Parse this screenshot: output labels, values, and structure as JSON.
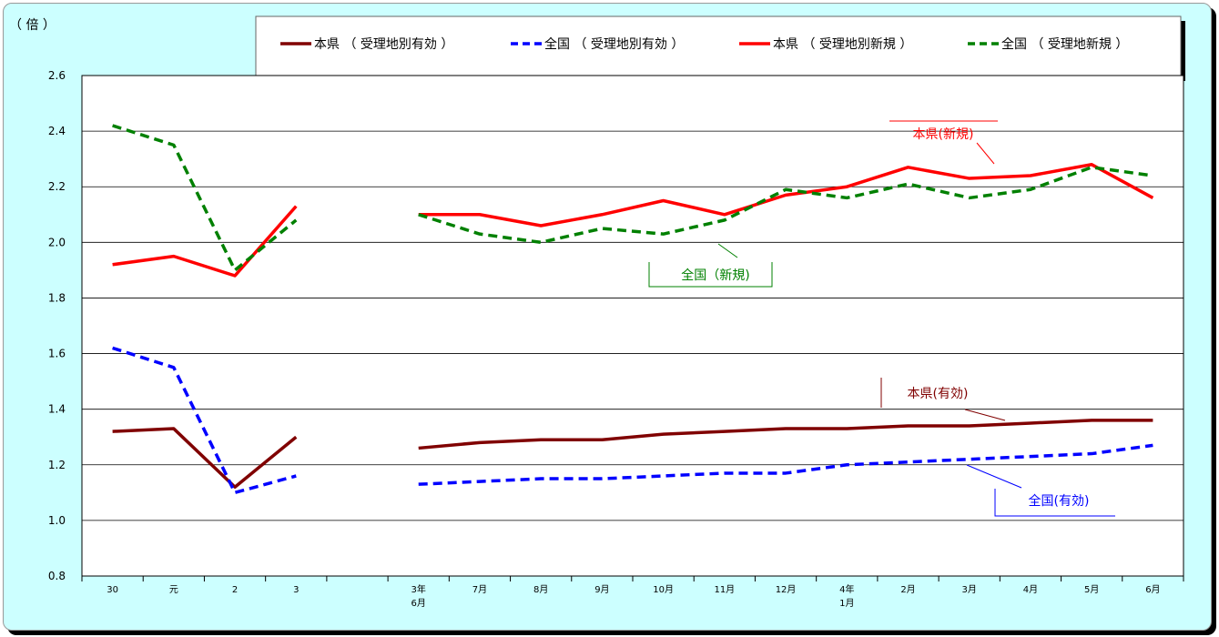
{
  "chart_data": {
    "type": "line",
    "y_unit_label": "（ 倍 ）",
    "ylim": [
      0.8,
      2.6
    ],
    "y_ticks": [
      "0.8",
      "1.0",
      "1.2",
      "1.4",
      "1.6",
      "1.8",
      "2.0",
      "2.2",
      "2.4",
      "2.6"
    ],
    "grid": true,
    "legend_position": "top",
    "categories": [
      [
        "30"
      ],
      [
        "元"
      ],
      [
        "2"
      ],
      [
        "3"
      ],
      [
        ""
      ],
      [
        "3年",
        "6月"
      ],
      [
        "7月"
      ],
      [
        "8月"
      ],
      [
        "9月"
      ],
      [
        "10月"
      ],
      [
        "11月"
      ],
      [
        "12月"
      ],
      [
        "4年",
        "1月"
      ],
      [
        "2月"
      ],
      [
        "3月"
      ],
      [
        "4月"
      ],
      [
        "5月"
      ],
      [
        "6月"
      ]
    ],
    "series": [
      {
        "name": "本県 （ 受理地別有効 ）",
        "color": "#800000",
        "dash": "solid",
        "values": [
          1.32,
          1.33,
          1.12,
          1.3,
          null,
          1.26,
          1.28,
          1.29,
          1.29,
          1.31,
          1.32,
          1.33,
          1.33,
          1.34,
          1.34,
          1.35,
          1.36,
          1.36
        ]
      },
      {
        "name": "全国 （ 受理地別有効 ）",
        "color": "#0000ff",
        "dash": "dashed",
        "values": [
          1.62,
          1.55,
          1.1,
          1.16,
          null,
          1.13,
          1.14,
          1.15,
          1.15,
          1.16,
          1.17,
          1.17,
          1.2,
          1.21,
          1.22,
          1.23,
          1.24,
          1.27
        ]
      },
      {
        "name": "本県 （ 受理地別新規 ）",
        "color": "#ff0000",
        "dash": "solid",
        "values": [
          1.92,
          1.95,
          1.88,
          2.13,
          null,
          2.1,
          2.1,
          2.06,
          2.1,
          2.15,
          2.1,
          2.17,
          2.2,
          2.27,
          2.23,
          2.24,
          2.28,
          2.16
        ]
      },
      {
        "name": "全国 （ 受理地新規 ）",
        "color": "#008000",
        "dash": "dashed",
        "values": [
          2.42,
          2.35,
          1.9,
          2.08,
          null,
          2.1,
          2.03,
          2.0,
          2.05,
          2.03,
          2.08,
          2.19,
          2.16,
          2.21,
          2.16,
          2.19,
          2.27,
          2.24
        ]
      }
    ],
    "annotations": [
      {
        "text": "本県(新規)",
        "color": "#ff0000"
      },
      {
        "text": "全国（新規)",
        "color": "#008000"
      },
      {
        "text": "本県(有効)",
        "color": "#800000"
      },
      {
        "text": "全国(有効)",
        "color": "#0000ff"
      }
    ]
  }
}
